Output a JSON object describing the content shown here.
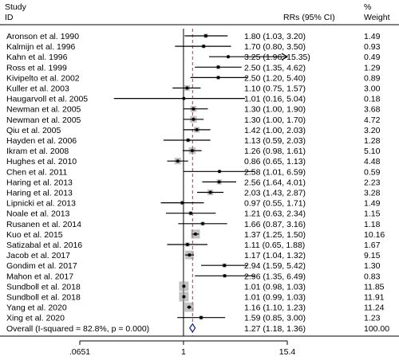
{
  "chart_data": {
    "type": "forest",
    "header": {
      "study_line1": "Study",
      "study_line2": "ID",
      "effect_label": "RRs (95% CI)",
      "weight_line1": "%",
      "weight_line2": "Weight"
    },
    "x_axis": {
      "scale": "log",
      "ticks": [
        {
          "value": 0.0651,
          "label": ".0651"
        },
        {
          "value": 1,
          "label": "1"
        },
        {
          "value": 15.4,
          "label": "15.4"
        }
      ],
      "range": [
        0.0651,
        15.4
      ]
    },
    "null_line": 1,
    "pooled_line": 1.27,
    "studies": [
      {
        "id": "Aronson et al. 1990",
        "rr": 1.8,
        "lo": 1.03,
        "hi": 3.2,
        "ci_text": "1.80 (1.03, 3.20)",
        "weight": "1.49"
      },
      {
        "id": "Kalmijn et al. 1996",
        "rr": 1.7,
        "lo": 0.8,
        "hi": 3.5,
        "ci_text": "1.70 (0.80, 3.50)",
        "weight": "0.93"
      },
      {
        "id": "Kahn et al. 1996",
        "rr": 3.25,
        "lo": 1.96,
        "hi": 15.35,
        "ci_text": "3.25 (1.96, 15.35)",
        "weight": "0.49",
        "arrow_right": true
      },
      {
        "id": "Ross et al. 1999",
        "rr": 2.5,
        "lo": 1.35,
        "hi": 4.62,
        "ci_text": "2.50 (1.35, 4.62)",
        "weight": "1.29"
      },
      {
        "id": "Kivipelto et al. 2002",
        "rr": 2.5,
        "lo": 1.2,
        "hi": 5.4,
        "ci_text": "2.50 (1.20, 5.40)",
        "weight": "0.89"
      },
      {
        "id": "Kuller et al. 2003",
        "rr": 1.1,
        "lo": 0.75,
        "hi": 1.57,
        "ci_text": "1.10 (0.75, 1.57)",
        "weight": "3.00"
      },
      {
        "id": "Haugarvoll et al. 2005",
        "rr": 1.01,
        "lo": 0.16,
        "hi": 5.04,
        "ci_text": "1.01 (0.16, 5.04)",
        "weight": "0.18"
      },
      {
        "id": "Newman et al. 2005",
        "rr": 1.3,
        "lo": 1.0,
        "hi": 1.9,
        "ci_text": "1.30 (1.00, 1.90)",
        "weight": "3.68"
      },
      {
        "id": "Newman et al. 2005",
        "rr": 1.3,
        "lo": 1.0,
        "hi": 1.7,
        "ci_text": "1.30 (1.00, 1.70)",
        "weight": "4.72"
      },
      {
        "id": "Qiu et al. 2005",
        "rr": 1.42,
        "lo": 1.0,
        "hi": 2.03,
        "ci_text": "1.42 (1.00, 2.03)",
        "weight": "3.20"
      },
      {
        "id": "Hayden et al. 2006",
        "rr": 1.13,
        "lo": 0.59,
        "hi": 2.03,
        "ci_text": "1.13 (0.59, 2.03)",
        "weight": "1.28"
      },
      {
        "id": "Ikram et al. 2008",
        "rr": 1.26,
        "lo": 0.98,
        "hi": 1.61,
        "ci_text": "1.26 (0.98, 1.61)",
        "weight": "5.10"
      },
      {
        "id": "Hughes et al. 2010",
        "rr": 0.86,
        "lo": 0.65,
        "hi": 1.13,
        "ci_text": "0.86 (0.65, 1.13)",
        "weight": "4.48"
      },
      {
        "id": "Chen et al. 2011",
        "rr": 2.58,
        "lo": 1.01,
        "hi": 6.59,
        "ci_text": "2.58 (1.01, 6.59)",
        "weight": "0.59"
      },
      {
        "id": "Haring et al. 2013",
        "rr": 2.56,
        "lo": 1.64,
        "hi": 4.01,
        "ci_text": "2.56 (1.64, 4.01)",
        "weight": "2.23"
      },
      {
        "id": "Haring et al. 2013",
        "rr": 2.03,
        "lo": 1.43,
        "hi": 2.87,
        "ci_text": "2.03 (1.43, 2.87)",
        "weight": "3.28"
      },
      {
        "id": "Lipnicki et al. 2013",
        "rr": 0.97,
        "lo": 0.55,
        "hi": 1.71,
        "ci_text": "0.97 (0.55, 1.71)",
        "weight": "1.49"
      },
      {
        "id": "Noale et al. 2013",
        "rr": 1.21,
        "lo": 0.63,
        "hi": 2.34,
        "ci_text": "1.21 (0.63, 2.34)",
        "weight": "1.15"
      },
      {
        "id": "Rusanen et al. 2014",
        "rr": 1.66,
        "lo": 0.87,
        "hi": 3.16,
        "ci_text": "1.66 (0.87, 3.16)",
        "weight": "1.18"
      },
      {
        "id": "Kuo et al. 2015",
        "rr": 1.37,
        "lo": 1.25,
        "hi": 1.5,
        "ci_text": "1.37 (1.25, 1.50)",
        "weight": "10.16"
      },
      {
        "id": "Satizabal et al. 2016",
        "rr": 1.11,
        "lo": 0.65,
        "hi": 1.88,
        "ci_text": "1.11 (0.65, 1.88)",
        "weight": "1.67"
      },
      {
        "id": "Jacob et al. 2017",
        "rr": 1.17,
        "lo": 1.04,
        "hi": 1.32,
        "ci_text": "1.17 (1.04, 1.32)",
        "weight": "9.15"
      },
      {
        "id": "Gondim et al. 2017",
        "rr": 2.94,
        "lo": 1.59,
        "hi": 5.42,
        "ci_text": "2.94 (1.59, 5.42)",
        "weight": "1.30"
      },
      {
        "id": "Mahon et al. 2017",
        "rr": 2.96,
        "lo": 1.35,
        "hi": 6.49,
        "ci_text": "2.96 (1.35, 6.49)",
        "weight": "0.83"
      },
      {
        "id": "Sundboll et al. 2018",
        "rr": 1.01,
        "lo": 0.98,
        "hi": 1.03,
        "ci_text": "1.01 (0.98, 1.03)",
        "weight": "11.85"
      },
      {
        "id": "Sundboll et al. 2018",
        "rr": 1.01,
        "lo": 0.99,
        "hi": 1.03,
        "ci_text": "1.01 (0.99, 1.03)",
        "weight": "11.91"
      },
      {
        "id": "Yang et al. 2020",
        "rr": 1.16,
        "lo": 1.1,
        "hi": 1.23,
        "ci_text": "1.16 (1.10, 1.23)",
        "weight": "11.24"
      },
      {
        "id": "Xing et al. 2020",
        "rr": 1.59,
        "lo": 0.85,
        "hi": 3.0,
        "ci_text": "1.59 (0.85, 3.00)",
        "weight": "1.23"
      }
    ],
    "overall": {
      "label": "Overall  (I-squared = 82.8%, p = 0.000)",
      "rr": 1.27,
      "lo": 1.18,
      "hi": 1.36,
      "ci_text": "1.27 (1.18, 1.36)",
      "weight": "100.00"
    },
    "colors": {
      "ink": "#000000",
      "pooled_line": "#b03060",
      "diamond": "#1f2a8c",
      "box": "#9a9a9a"
    }
  }
}
